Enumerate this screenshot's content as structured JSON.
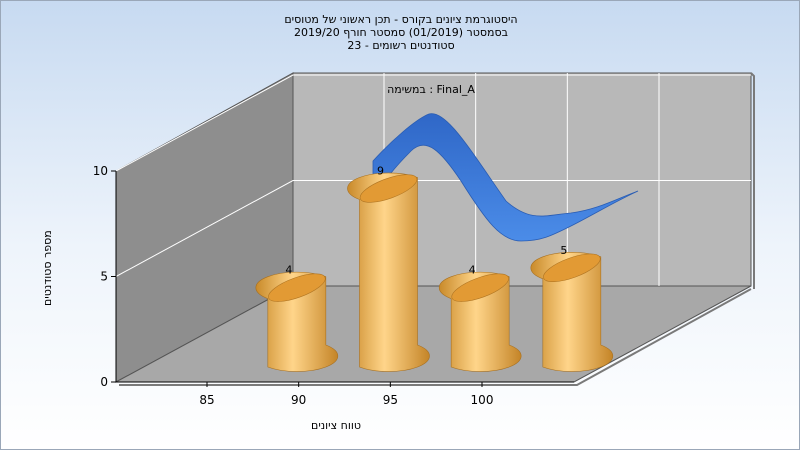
{
  "chart_data": {
    "type": "bar",
    "title_lines": [
      "היסטוגרמת ציונים בקורס - תכן ראשוני של מטוסים",
      "בסמסטר  (01/2019)  סמסטר חורף 2019/20",
      "סטודנטים רשומים - 23"
    ],
    "annotation": "במשימה : Final_A",
    "xlabel": "טווח ציונים",
    "ylabel": "מספר סטודנטים",
    "ylim": [
      0,
      10
    ],
    "y_ticks": [
      "0",
      "5",
      "10"
    ],
    "x_ticks": [
      "85",
      "90",
      "95",
      "100"
    ],
    "bars": [
      {
        "x": 87.5,
        "value": 4,
        "label": "4"
      },
      {
        "x": 92.5,
        "value": 9,
        "label": "9"
      },
      {
        "x": 97.5,
        "value": 4,
        "label": "4"
      },
      {
        "x": 102.5,
        "value": 5,
        "label": "5"
      }
    ],
    "grid": true,
    "colors": {
      "bar": "#f2b65a",
      "curve": "#3a78d8",
      "back_wall": "#b9b9b9",
      "side_wall": "#8c8c8c"
    }
  }
}
